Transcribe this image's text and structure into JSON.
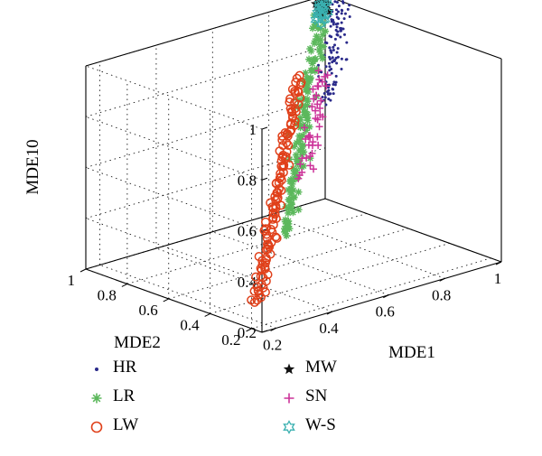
{
  "chart_data": {
    "type": "scatter",
    "projection": "3d",
    "grid": true,
    "legend_position": "bottom",
    "axes": {
      "x": {
        "label": "MDE1",
        "ticks": [
          "0.2",
          "0.4",
          "0.6",
          "0.8",
          "1"
        ],
        "range": [
          0.15,
          1.0
        ]
      },
      "y": {
        "label": "MDE2",
        "ticks": [
          "0.2",
          "0.4",
          "0.6",
          "0.8",
          "1"
        ],
        "range": [
          0.15,
          1.0
        ]
      },
      "z": {
        "label": "MDE10",
        "ticks": [
          "0.2",
          "0.4",
          "0.6",
          "0.8",
          "1"
        ],
        "range": [
          0.2,
          1.0
        ]
      }
    },
    "series": [
      {
        "name": "HR",
        "marker": "dot",
        "color": "#2a2a8a",
        "summary": "cluster along the diagonal, MDE1 ≈ MDE2 from 0.75 to 1.0, MDE10 from 0.7 to 1.0"
      },
      {
        "name": "LR",
        "marker": "asterisk",
        "color": "#5cb85c",
        "summary": "cluster along the diagonal, MDE1 ≈ MDE2 from 0.45 to 0.95, MDE10 from 0.45 to 0.95"
      },
      {
        "name": "LW",
        "marker": "circle",
        "color": "#e0401a",
        "summary": "cluster along the diagonal, MDE1 ≈ MDE2 from 0.2 to 0.75, MDE10 from 0.3 to 0.8"
      },
      {
        "name": "MW",
        "marker": "star",
        "color": "#111111",
        "summary": "tight cluster near MDE1 ≈ MDE2 ≈ 0.97, MDE10 ≈ 0.98"
      },
      {
        "name": "SN",
        "marker": "plus",
        "color": "#cc3399",
        "summary": "cluster along the diagonal, MDE1 ≈ MDE2 from 0.55 to 0.8, MDE10 from 0.55 to 0.8"
      },
      {
        "name": "W-S",
        "marker": "hexagram",
        "color": "#3ab0b0",
        "summary": "tight cluster near MDE1 ≈ MDE2 ≈ 0.96, MDE10 ≈ 0.97"
      }
    ]
  }
}
